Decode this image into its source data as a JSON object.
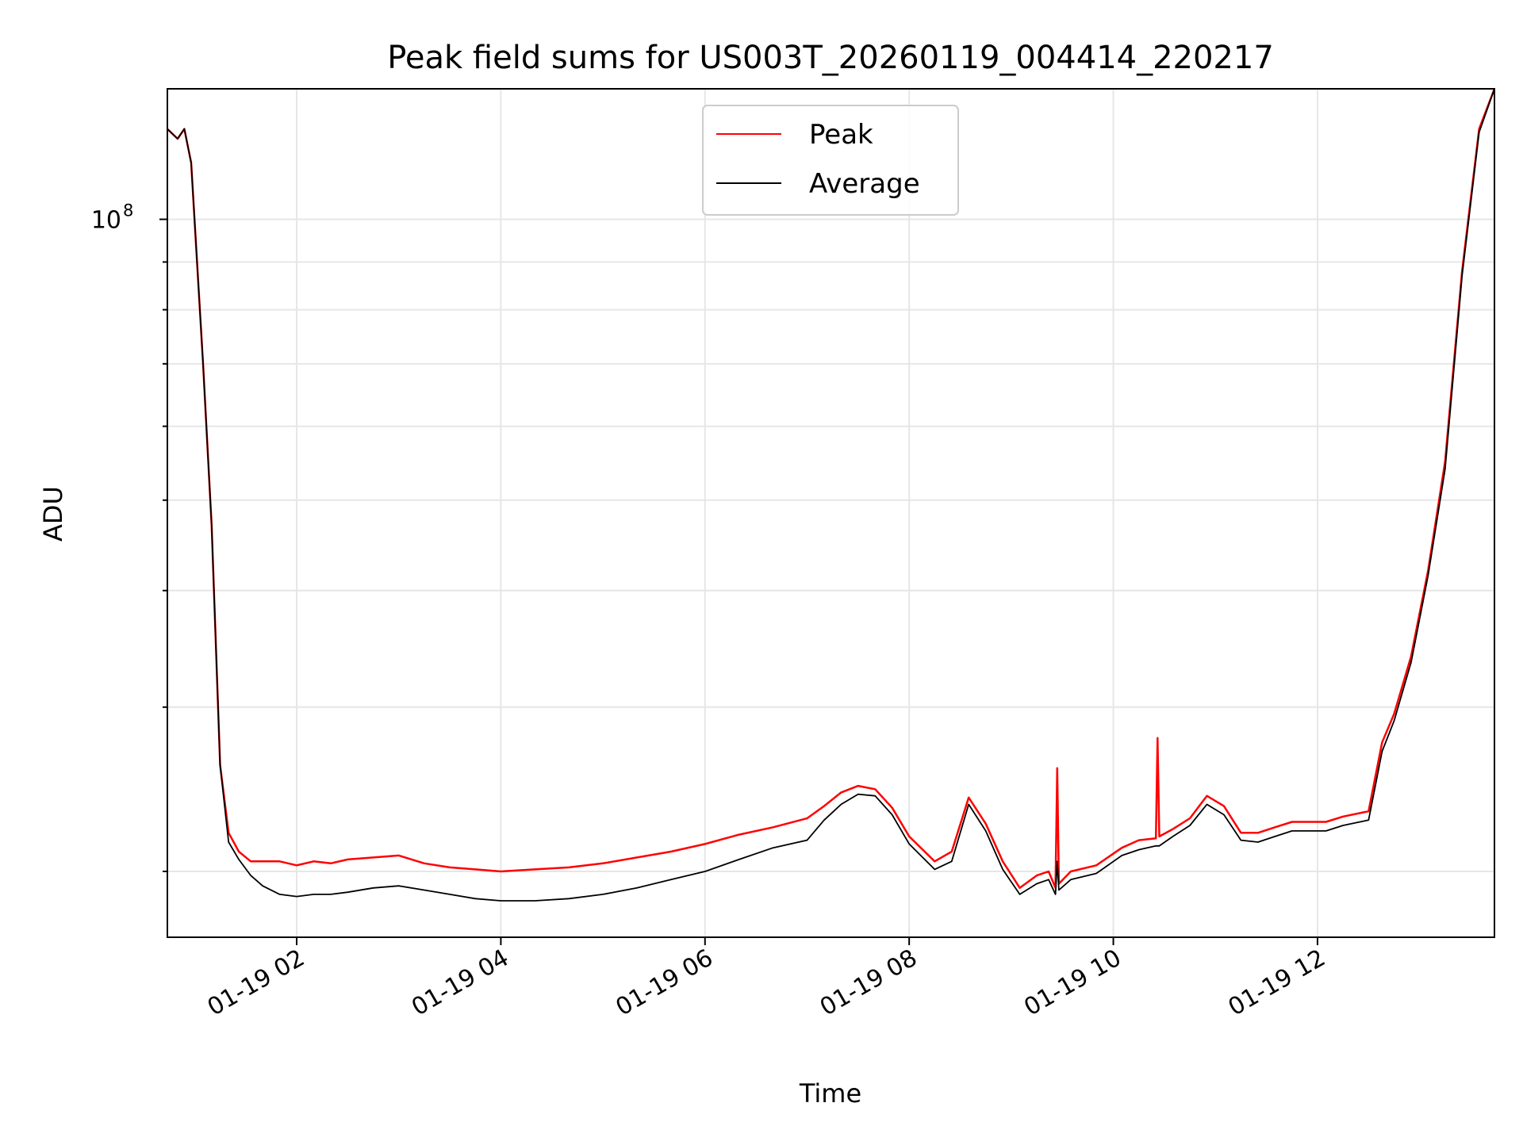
{
  "chart_data": {
    "type": "line",
    "title": "Peak field sums for US003T_20260119_004414_220217",
    "xlabel": "Time",
    "ylabel": "ADU",
    "xlim": [
      "01-19 00:44",
      "01-19 13:44"
    ],
    "ylim": [
      17000000,
      138000000
    ],
    "yscale": "log",
    "grid": true,
    "legend_position": "top-center",
    "x_ticks": [
      "01-19 02",
      "01-19 04",
      "01-19 06",
      "01-19 08",
      "01-19 10",
      "01-19 12"
    ],
    "y_ticks": [
      {
        "value": 100000000,
        "label": "10",
        "exp": "8"
      }
    ],
    "series": [
      {
        "name": "Peak",
        "color": "#ff0000",
        "x": [
          "01-19 00:44",
          "01-19 00:50",
          "01-19 00:54",
          "01-19 00:58",
          "01-19 01:05",
          "01-19 01:10",
          "01-19 01:15",
          "01-19 01:20",
          "01-19 01:26",
          "01-19 01:33",
          "01-19 01:40",
          "01-19 01:50",
          "01-19 02:00",
          "01-19 02:10",
          "01-19 02:20",
          "01-19 02:30",
          "01-19 02:45",
          "01-19 03:00",
          "01-19 03:15",
          "01-19 03:30",
          "01-19 03:45",
          "01-19 04:00",
          "01-19 04:20",
          "01-19 04:40",
          "01-19 05:00",
          "01-19 05:20",
          "01-19 05:40",
          "01-19 06:00",
          "01-19 06:20",
          "01-19 06:40",
          "01-19 07:00",
          "01-19 07:10",
          "01-19 07:20",
          "01-19 07:30",
          "01-19 07:40",
          "01-19 07:50",
          "01-19 08:00",
          "01-19 08:15",
          "01-19 08:25",
          "01-19 08:35",
          "01-19 08:45",
          "01-19 08:55",
          "01-19 09:05",
          "01-19 09:15",
          "01-19 09:22",
          "01-19 09:26",
          "01-19 09:27",
          "01-19 09:28",
          "01-19 09:35",
          "01-19 09:50",
          "01-19 10:05",
          "01-19 10:15",
          "01-19 10:25",
          "01-19 10:26",
          "01-19 10:27",
          "01-19 10:35",
          "01-19 10:45",
          "01-19 10:55",
          "01-19 11:05",
          "01-19 11:15",
          "01-19 11:25",
          "01-19 11:35",
          "01-19 11:45",
          "01-19 11:55",
          "01-19 12:05",
          "01-19 12:15",
          "01-19 12:30",
          "01-19 12:38",
          "01-19 12:45",
          "01-19 12:55",
          "01-19 13:05",
          "01-19 13:15",
          "01-19 13:25",
          "01-19 13:35",
          "01-19 13:44"
        ],
        "values": [
          125000000,
          122000000,
          125000000,
          115000000,
          70000000,
          47000000,
          26000000,
          22000000,
          21000000,
          20500000,
          20500000,
          20500000,
          20300000,
          20500000,
          20400000,
          20600000,
          20700000,
          20800000,
          20400000,
          20200000,
          20100000,
          20000000,
          20100000,
          20200000,
          20400000,
          20700000,
          21000000,
          21400000,
          21900000,
          22300000,
          22800000,
          23500000,
          24300000,
          24700000,
          24500000,
          23400000,
          21800000,
          20500000,
          21000000,
          24000000,
          22500000,
          20500000,
          19200000,
          19800000,
          20000000,
          19200000,
          25800000,
          19400000,
          20000000,
          20300000,
          21200000,
          21600000,
          21700000,
          27800000,
          21800000,
          22200000,
          22800000,
          24100000,
          23500000,
          22000000,
          22000000,
          22300000,
          22600000,
          22600000,
          22600000,
          22900000,
          23200000,
          27500000,
          29500000,
          34000000,
          42000000,
          55000000,
          88000000,
          125000000,
          138000000
        ]
      },
      {
        "name": "Average",
        "color": "#000000",
        "x": [
          "01-19 00:44",
          "01-19 00:50",
          "01-19 00:54",
          "01-19 00:58",
          "01-19 01:05",
          "01-19 01:10",
          "01-19 01:15",
          "01-19 01:20",
          "01-19 01:26",
          "01-19 01:33",
          "01-19 01:40",
          "01-19 01:50",
          "01-19 02:00",
          "01-19 02:10",
          "01-19 02:20",
          "01-19 02:30",
          "01-19 02:45",
          "01-19 03:00",
          "01-19 03:15",
          "01-19 03:30",
          "01-19 03:45",
          "01-19 04:00",
          "01-19 04:20",
          "01-19 04:40",
          "01-19 05:00",
          "01-19 05:20",
          "01-19 05:40",
          "01-19 06:00",
          "01-19 06:20",
          "01-19 06:40",
          "01-19 07:00",
          "01-19 07:10",
          "01-19 07:20",
          "01-19 07:30",
          "01-19 07:40",
          "01-19 07:50",
          "01-19 08:00",
          "01-19 08:15",
          "01-19 08:25",
          "01-19 08:35",
          "01-19 08:45",
          "01-19 08:55",
          "01-19 09:05",
          "01-19 09:15",
          "01-19 09:22",
          "01-19 09:26",
          "01-19 09:27",
          "01-19 09:28",
          "01-19 09:35",
          "01-19 09:50",
          "01-19 10:05",
          "01-19 10:15",
          "01-19 10:25",
          "01-19 10:26",
          "01-19 10:27",
          "01-19 10:35",
          "01-19 10:45",
          "01-19 10:55",
          "01-19 11:05",
          "01-19 11:15",
          "01-19 11:25",
          "01-19 11:35",
          "01-19 11:45",
          "01-19 11:55",
          "01-19 12:05",
          "01-19 12:15",
          "01-19 12:30",
          "01-19 12:38",
          "01-19 12:45",
          "01-19 12:55",
          "01-19 13:05",
          "01-19 13:15",
          "01-19 13:25",
          "01-19 13:35",
          "01-19 13:44"
        ],
        "values": [
          125000000,
          122000000,
          125000000,
          115000000,
          70000000,
          47000000,
          26000000,
          21500000,
          20600000,
          19800000,
          19300000,
          18900000,
          18800000,
          18900000,
          18900000,
          19000000,
          19200000,
          19300000,
          19100000,
          18900000,
          18700000,
          18600000,
          18600000,
          18700000,
          18900000,
          19200000,
          19600000,
          20000000,
          20600000,
          21200000,
          21600000,
          22700000,
          23600000,
          24200000,
          24100000,
          23000000,
          21400000,
          20100000,
          20500000,
          23600000,
          22100000,
          20100000,
          18900000,
          19400000,
          19600000,
          18900000,
          20500000,
          19100000,
          19600000,
          19900000,
          20800000,
          21100000,
          21300000,
          21300000,
          21300000,
          21800000,
          22400000,
          23600000,
          23000000,
          21600000,
          21500000,
          21800000,
          22100000,
          22100000,
          22100000,
          22400000,
          22700000,
          26900000,
          29000000,
          33500000,
          41500000,
          54000000,
          87000000,
          124000000,
          138000000
        ]
      }
    ]
  }
}
